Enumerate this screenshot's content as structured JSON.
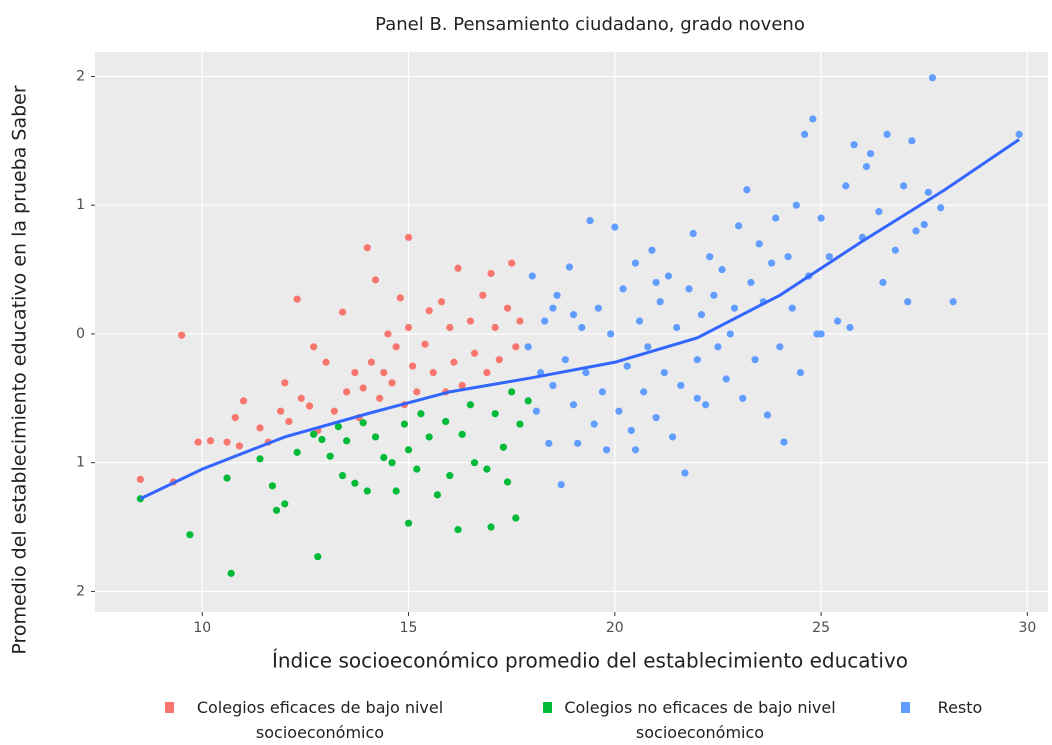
{
  "chart_data": {
    "type": "scatter",
    "title": "Panel B. Pensamiento ciudadano, grado noveno",
    "x_label": "Índice socioeconómico promedio del establecimiento educativo",
    "y_label": "Promedio del establecimiento educativo en la prueba Saber",
    "xlim": [
      7.4,
      30.5
    ],
    "ylim": [
      -2.16,
      2.19
    ],
    "xticks": [
      10,
      15,
      20,
      25,
      30
    ],
    "yticks": [
      {
        "value": -2,
        "label": "2"
      },
      {
        "value": -1,
        "label": "1"
      },
      0,
      1,
      2
    ],
    "grid": true,
    "series": [
      {
        "name": "Colegios eficaces de bajo nivel\nsocioeconómico",
        "color": "#f8766d",
        "x": [
          8.5,
          9.3,
          9.5,
          9.9,
          10.2,
          10.6,
          10.8,
          10.9,
          11.0,
          11.4,
          11.6,
          11.9,
          12.0,
          12.1,
          12.3,
          12.4,
          12.6,
          12.7,
          12.8,
          13.0,
          13.2,
          13.4,
          13.5,
          13.7,
          13.8,
          13.9,
          14.0,
          14.1,
          14.2,
          14.3,
          14.4,
          14.5,
          14.6,
          14.7,
          14.8,
          14.9,
          15.0,
          15.0,
          15.1,
          15.2,
          15.4,
          15.5,
          15.6,
          15.8,
          15.9,
          16.0,
          16.1,
          16.2,
          16.3,
          16.5,
          16.6,
          16.8,
          16.9,
          17.0,
          17.1,
          17.2,
          17.4,
          17.5,
          17.6,
          17.7
        ],
        "y": [
          -1.13,
          -1.15,
          -0.01,
          -0.84,
          -0.83,
          -0.84,
          -0.65,
          -0.87,
          -0.52,
          -0.73,
          -0.84,
          -0.6,
          -0.38,
          -0.68,
          0.27,
          -0.5,
          -0.56,
          -0.1,
          -0.75,
          -0.22,
          -0.6,
          0.17,
          -0.45,
          -0.3,
          -0.65,
          -0.42,
          0.67,
          -0.22,
          0.42,
          -0.5,
          -0.3,
          0.0,
          -0.38,
          -0.1,
          0.28,
          -0.55,
          0.75,
          0.05,
          -0.25,
          -0.45,
          -0.08,
          0.18,
          -0.3,
          0.25,
          -0.45,
          0.05,
          -0.22,
          0.51,
          -0.4,
          0.1,
          -0.15,
          0.3,
          -0.3,
          0.47,
          0.05,
          -0.2,
          0.2,
          0.55,
          -0.1,
          0.1
        ]
      },
      {
        "name": "Colegios no eficaces de bajo nivel\nsocioeconómico",
        "color": "#00ba38",
        "x": [
          8.5,
          9.7,
          10.6,
          10.7,
          11.4,
          11.7,
          11.8,
          12.0,
          12.3,
          12.7,
          12.8,
          12.9,
          13.1,
          13.3,
          13.4,
          13.5,
          13.7,
          13.9,
          14.0,
          14.2,
          14.4,
          14.6,
          14.7,
          14.9,
          15.0,
          15.0,
          15.2,
          15.3,
          15.5,
          15.7,
          15.9,
          16.0,
          16.2,
          16.3,
          16.5,
          16.6,
          16.9,
          17.0,
          17.1,
          17.3,
          17.4,
          17.6,
          17.7,
          17.9,
          17.5
        ],
        "y": [
          -1.28,
          -1.56,
          -1.12,
          -1.86,
          -0.97,
          -1.18,
          -1.37,
          -1.32,
          -0.92,
          -0.78,
          -1.73,
          -0.82,
          -0.95,
          -0.72,
          -1.1,
          -0.83,
          -1.16,
          -0.69,
          -1.22,
          -0.8,
          -0.96,
          -1.0,
          -1.22,
          -0.7,
          -1.47,
          -0.9,
          -1.05,
          -0.62,
          -0.8,
          -1.25,
          -0.68,
          -1.1,
          -1.52,
          -0.78,
          -0.55,
          -1.0,
          -1.05,
          -1.5,
          -0.62,
          -0.88,
          -1.15,
          -1.43,
          -0.7,
          -0.52,
          -0.45
        ]
      },
      {
        "name": "Resto",
        "color": "#619cff",
        "x": [
          17.9,
          18.0,
          18.1,
          18.2,
          18.3,
          18.4,
          18.5,
          18.6,
          18.7,
          18.8,
          18.9,
          19.0,
          19.1,
          19.2,
          19.3,
          19.4,
          19.5,
          19.6,
          19.7,
          19.8,
          19.9,
          20.0,
          20.1,
          20.2,
          20.3,
          20.4,
          20.5,
          20.6,
          20.7,
          20.8,
          20.9,
          21.0,
          21.1,
          21.2,
          21.3,
          21.4,
          21.5,
          21.6,
          21.7,
          21.8,
          21.9,
          22.0,
          22.1,
          22.2,
          22.3,
          22.4,
          22.5,
          22.6,
          22.7,
          22.8,
          22.9,
          23.0,
          23.1,
          23.2,
          23.3,
          23.4,
          23.5,
          23.6,
          23.7,
          23.8,
          23.9,
          24.0,
          24.1,
          24.2,
          24.3,
          24.4,
          24.5,
          24.6,
          24.7,
          24.8,
          24.9,
          25.0,
          25.2,
          25.4,
          25.6,
          25.7,
          25.8,
          26.0,
          26.1,
          26.2,
          26.4,
          26.5,
          26.6,
          26.8,
          27.0,
          27.1,
          27.2,
          27.3,
          27.5,
          27.6,
          27.7,
          27.9,
          28.2,
          29.8,
          25.0,
          22.0,
          19.0,
          20.5,
          21.0,
          18.5
        ],
        "y": [
          -0.1,
          0.45,
          -0.6,
          -0.3,
          0.1,
          -0.85,
          -0.4,
          0.3,
          -1.17,
          -0.2,
          0.52,
          -0.55,
          -0.85,
          0.05,
          -0.3,
          0.88,
          -0.7,
          0.2,
          -0.45,
          -0.9,
          0.0,
          0.83,
          -0.6,
          0.35,
          -0.25,
          -0.75,
          0.55,
          0.1,
          -0.45,
          -0.1,
          0.65,
          -0.65,
          0.25,
          -0.3,
          0.45,
          -0.8,
          0.05,
          -0.4,
          -1.08,
          0.35,
          0.78,
          -0.2,
          0.15,
          -0.55,
          0.6,
          0.3,
          -0.1,
          0.5,
          -0.35,
          0.0,
          0.2,
          0.84,
          -0.5,
          1.12,
          0.4,
          -0.2,
          0.7,
          0.25,
          -0.63,
          0.55,
          0.9,
          -0.1,
          -0.84,
          0.6,
          0.2,
          1.0,
          -0.3,
          1.55,
          0.45,
          1.67,
          0.0,
          0.9,
          0.6,
          0.1,
          1.15,
          0.05,
          1.47,
          0.75,
          1.3,
          1.4,
          0.95,
          0.4,
          1.55,
          0.65,
          1.15,
          0.25,
          1.5,
          0.8,
          0.85,
          1.1,
          1.99,
          0.98,
          0.25,
          1.55,
          0.0,
          -0.5,
          0.15,
          -0.9,
          0.4,
          0.2
        ]
      }
    ],
    "trend": {
      "color": "#3366ff",
      "x": [
        8.5,
        10,
        12,
        14,
        16,
        18,
        20,
        22,
        24,
        26,
        28,
        29.8
      ],
      "y": [
        -1.28,
        -1.05,
        -0.8,
        -0.62,
        -0.45,
        -0.34,
        -0.22,
        -0.03,
        0.3,
        0.72,
        1.12,
        1.51
      ]
    }
  }
}
